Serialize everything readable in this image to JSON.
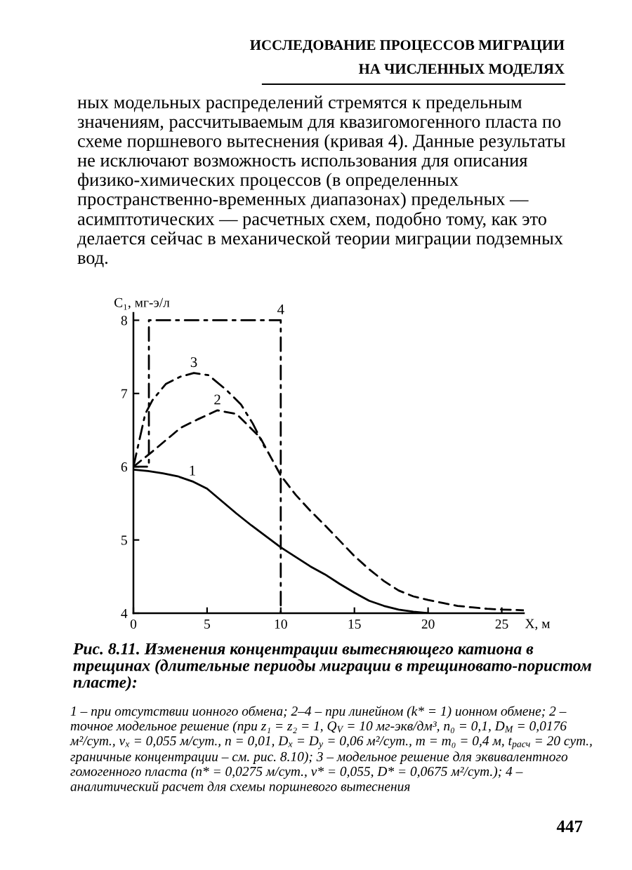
{
  "chart_data": {
    "type": "line",
    "title": "Рис. 8.11. Изменения концентрации вытесняющего катиона в трещинах (длительные периоды миграции в трещиновато-пористом пласте):",
    "xlabel": "X, м",
    "ylabel": "C₁, мг-э/л",
    "xlim": [
      0,
      26.5
    ],
    "ylim": [
      4,
      8.1
    ],
    "xticks": [
      0,
      5,
      10,
      15,
      20,
      25
    ],
    "yticks": [
      4,
      5,
      6,
      7,
      8
    ],
    "series": [
      {
        "name": "1",
        "color": "#000000",
        "line_style": "solid",
        "x": [
          0,
          1,
          2,
          3,
          4,
          5,
          6,
          7,
          8,
          9,
          10,
          11,
          12,
          13,
          14,
          15,
          16,
          17,
          18,
          19,
          20
        ],
        "values": [
          5.96,
          5.94,
          5.91,
          5.87,
          5.8,
          5.7,
          5.53,
          5.36,
          5.2,
          5.05,
          4.9,
          4.77,
          4.64,
          4.53,
          4.4,
          4.28,
          4.17,
          4.1,
          4.05,
          4.02,
          4.0
        ]
      },
      {
        "name": "2",
        "color": "#000000",
        "line_style": "dashed",
        "x": [
          0,
          1.3,
          3.2,
          4.4,
          5.7,
          7,
          8.6,
          9,
          10,
          11,
          12,
          13,
          14,
          15,
          16,
          17,
          18,
          19,
          20,
          21,
          22,
          23,
          24,
          25,
          26.5
        ],
        "values": [
          6.0,
          6.21,
          6.53,
          6.65,
          6.77,
          6.72,
          6.4,
          6.25,
          5.88,
          5.62,
          5.4,
          5.2,
          4.99,
          4.78,
          4.6,
          4.44,
          4.31,
          4.23,
          4.18,
          4.14,
          4.1,
          4.08,
          4.06,
          4.05,
          4.04
        ]
      },
      {
        "name": "3",
        "color": "#000000",
        "line_style": "dashdot",
        "x": [
          0,
          0.8,
          1.3,
          2.2,
          3.2,
          4.1,
          5.1,
          6.3,
          7.3,
          8.1,
          8.9
        ],
        "values": [
          6.0,
          6.72,
          6.91,
          7.13,
          7.23,
          7.28,
          7.25,
          7.05,
          6.85,
          6.59,
          6.27
        ]
      },
      {
        "name": "4",
        "color": "#000000",
        "line_style": "dashdot",
        "x": [
          0,
          1.05,
          1.05,
          10,
          10
        ],
        "values": [
          6.0,
          6.0,
          8.0,
          8.0,
          4.0
        ]
      }
    ],
    "annotations": [
      "ИССЛЕДОВАНИЕ ПРОЦЕССОВ МИГРАЦИИ",
      "НА ЧИСЛЕННЫХ МОДЕЛЯХ",
      "ных модельных распределений стремятся к предельным значениям, рассчитываемым для квазигомогенного пласта по схеме поршневого вытеснения (кривая 4). Данные результаты не исключают возможность использования для описания физико-химических процессов (в определенных пространственно-временных диапазонах) предельных — асимптотических — расчетных схем, подобно тому, как это делается сейчас в механической теории миграции подземных вод.",
      "1 – при отсутствии ионного обмена; 2–4 – при линейном (k* = 1) ионном обмене; 2 – точное модельное решение (при z₁ = z₂ = 1, Q$_{V}$ = 10 мг-экв/дм³, n₀ = 0,1, D$_{M}$ = 0,0176 м²/сут., v$_{x}$ = 0,055 м/сут., n = 0,01, D$_{x}$ = D$_{y}$ = 0,06 м²/сут., m = m₀ = 0,4 м, t$_{расч}$ = 20 сут., граничные концентрации – см. рис. 8.10); 3 – модельное решение для эквивалентного гомогенного пласта (n* = 0,0275 м/сут., v* = 0,055, D* = 0,0675 м²/сут.); 4 – аналитический расчет для схемы поршневого вытеснения",
      "447"
    ]
  }
}
